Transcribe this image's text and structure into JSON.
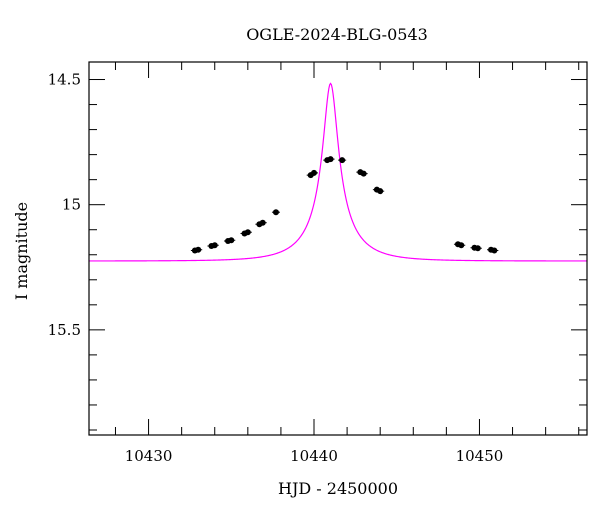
{
  "chart_data": {
    "type": "scatter",
    "title": "OGLE-2024-BLG-0543",
    "xlabel": "HJD - 2450000",
    "ylabel": "I magnitude",
    "xlim": [
      10426.4,
      10456.5
    ],
    "ylim": [
      15.92,
      14.43
    ],
    "y_inverted": true,
    "x_ticks": [
      10430,
      10440,
      10450
    ],
    "x_tick_labels": [
      "10430",
      "10440",
      "10450"
    ],
    "y_ticks": [
      14.5,
      15.0,
      15.5
    ],
    "y_tick_labels": [
      "14.5",
      "15",
      "15.5"
    ],
    "x_minor_step": 2,
    "y_minor_step": 0.1,
    "grid": false,
    "model_color": "#ff00ff",
    "point_color": "#000000",
    "model": {
      "t0": 10441.0,
      "tE": 2.58,
      "u0": 0.18,
      "base": 15.225,
      "dmag_max": 0.715,
      "A0": 5.66,
      "x_range": [
        10426.4,
        10456.5
      ]
    },
    "series": [
      {
        "points": [
          {
            "x": 10432.8,
            "y": 15.183
          },
          {
            "x": 10433.0,
            "y": 15.18
          },
          {
            "x": 10433.8,
            "y": 15.165
          },
          {
            "x": 10434.0,
            "y": 15.162
          },
          {
            "x": 10434.8,
            "y": 15.145
          },
          {
            "x": 10435.0,
            "y": 15.142
          },
          {
            "x": 10435.8,
            "y": 15.115
          },
          {
            "x": 10436.0,
            "y": 15.11
          },
          {
            "x": 10436.7,
            "y": 15.078
          },
          {
            "x": 10436.9,
            "y": 15.072
          },
          {
            "x": 10437.7,
            "y": 15.03
          },
          {
            "x": 10439.8,
            "y": 14.882
          },
          {
            "x": 10440.0,
            "y": 14.873
          },
          {
            "x": 10440.8,
            "y": 14.822
          },
          {
            "x": 10441.0,
            "y": 14.818
          },
          {
            "x": 10441.7,
            "y": 14.822
          },
          {
            "x": 10442.8,
            "y": 14.87
          },
          {
            "x": 10443.0,
            "y": 14.876
          },
          {
            "x": 10443.8,
            "y": 14.94
          },
          {
            "x": 10444.0,
            "y": 14.946
          },
          {
            "x": 10448.7,
            "y": 15.158
          },
          {
            "x": 10448.9,
            "y": 15.162
          },
          {
            "x": 10449.7,
            "y": 15.172
          },
          {
            "x": 10449.9,
            "y": 15.174
          },
          {
            "x": 10450.7,
            "y": 15.18
          },
          {
            "x": 10450.9,
            "y": 15.183
          }
        ]
      }
    ]
  }
}
